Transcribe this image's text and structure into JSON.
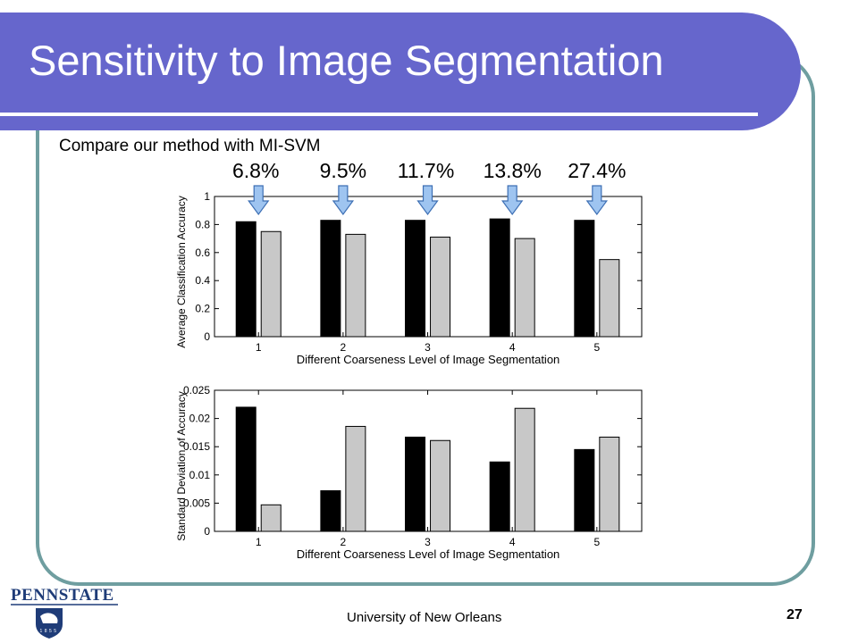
{
  "slide": {
    "title": "Sensitivity to Image Segmentation",
    "subtitle": "Compare our method with MI-SVM",
    "footer": "University of New Orleans",
    "page_number": "27",
    "logo_text": "PENNSTATE",
    "logo_year": "1855"
  },
  "colors": {
    "title_band": "#6666cc",
    "frame": "#6f9ea0",
    "series_ours": "#000000",
    "series_misvm": "#c8c8c8",
    "arrow_fill": "#9ec4f0",
    "arrow_stroke": "#3d6fb4",
    "logo_blue": "#1f3c78"
  },
  "chart_data": [
    {
      "type": "bar",
      "categories": [
        "1",
        "2",
        "3",
        "4",
        "5"
      ],
      "series": [
        {
          "values": [
            0.82,
            0.83,
            0.83,
            0.84,
            0.83
          ]
        },
        {
          "values": [
            0.75,
            0.73,
            0.71,
            0.7,
            0.55
          ]
        }
      ],
      "title": "",
      "xlabel": "Different Coarseness Level of Image Segmentation",
      "ylabel": "Average Classification Accuracy",
      "ylim": [
        0,
        1
      ],
      "yticks": [
        "0",
        "0.2",
        "0.4",
        "0.6",
        "0.8",
        "1"
      ],
      "grid": false,
      "annotations": [
        "6.8%",
        "9.5%",
        "11.7%",
        "13.8%",
        "27.4%"
      ]
    },
    {
      "type": "bar",
      "categories": [
        "1",
        "2",
        "3",
        "4",
        "5"
      ],
      "series": [
        {
          "values": [
            0.022,
            0.0072,
            0.0167,
            0.0123,
            0.0145
          ]
        },
        {
          "values": [
            0.0047,
            0.0186,
            0.0161,
            0.0218,
            0.0167
          ]
        }
      ],
      "title": "",
      "xlabel": "Different Coarseness Level of Image Segmentation",
      "ylabel": "Standard Deviation of Accuracy",
      "ylim": [
        0,
        0.025
      ],
      "yticks": [
        "0",
        "0.005",
        "0.01",
        "0.015",
        "0.02",
        "0.025"
      ],
      "grid": false
    }
  ]
}
